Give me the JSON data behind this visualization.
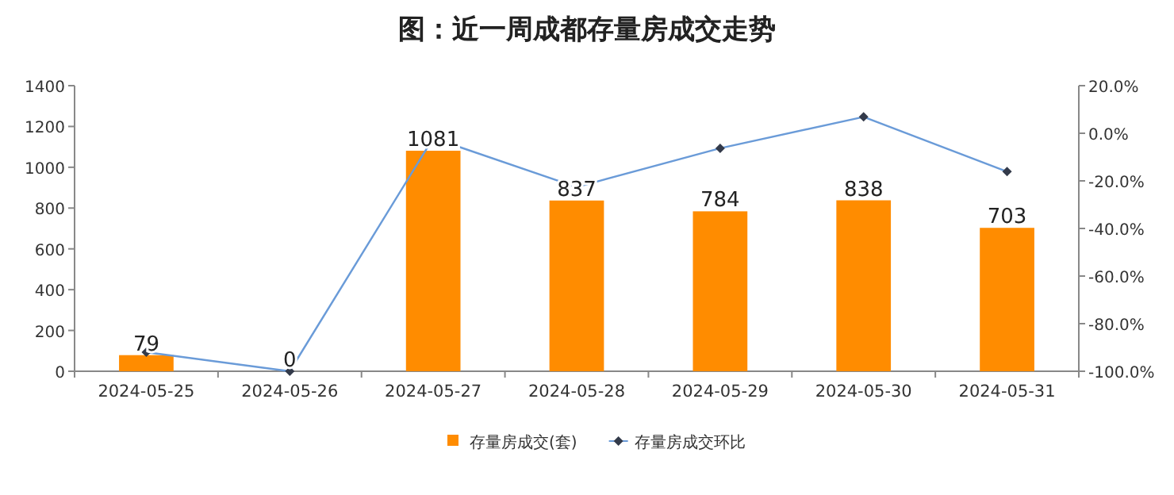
{
  "chart_data": {
    "type": "bar",
    "title": "图：近一周成都存量房成交走势",
    "categories": [
      "2024-05-25",
      "2024-05-26",
      "2024-05-27",
      "2024-05-28",
      "2024-05-29",
      "2024-05-30",
      "2024-05-31"
    ],
    "series": [
      {
        "name": "存量房成交(套)",
        "color": "#ff8c00",
        "values": [
          79,
          0,
          1081,
          837,
          784,
          838,
          703
        ],
        "value_labels": [
          "79",
          "0",
          "1081",
          "837",
          "784",
          "838",
          "703"
        ]
      },
      {
        "name": "存量房成交环比",
        "type": "line",
        "axis": "y2",
        "color": "#6a9bd8",
        "marker": "diamond",
        "values": [
          -92,
          -100,
          -2,
          -22.6,
          -6.3,
          6.9,
          -16.1
        ]
      }
    ],
    "ylim": [
      0,
      1400
    ],
    "yticks": [
      0,
      200,
      400,
      600,
      800,
      1000,
      1200,
      1400
    ],
    "y2lim": [
      -100,
      20
    ],
    "y2ticks": [
      {
        "value": -100,
        "label": "-100.0%"
      },
      {
        "value": -80,
        "label": "-80.0%"
      },
      {
        "value": -60,
        "label": "-60.0%"
      },
      {
        "value": -40,
        "label": "-40.0%"
      },
      {
        "value": -20,
        "label": "-20.0%"
      },
      {
        "value": 0,
        "label": "0.0%"
      },
      {
        "value": 20,
        "label": "20.0%"
      }
    ],
    "legend": "bottom",
    "grid": false
  }
}
